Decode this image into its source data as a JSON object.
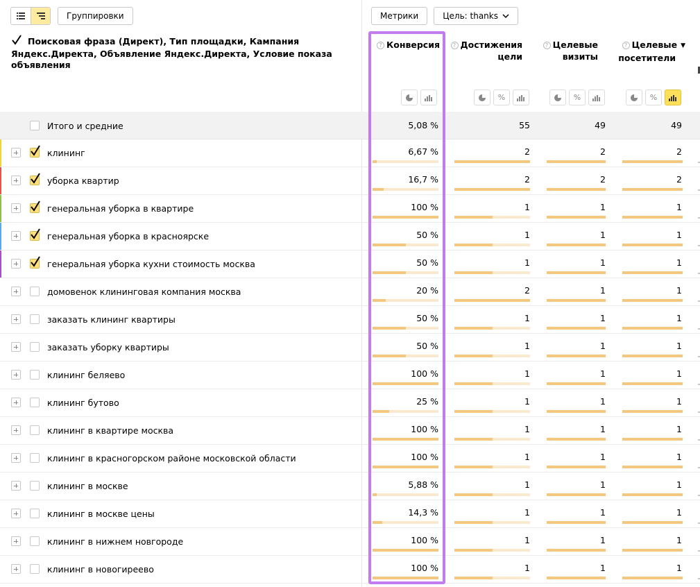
{
  "toolbar": {
    "groupings_label": "Группировки",
    "metrics_label": "Метрики",
    "goal_label": "Цель: thanks"
  },
  "dimension_header": "Поисковая фраза (Директ), Тип площадки, Кампания Яндекс.Директа, Объявление Яндекс.Директа, Условие показа объявления",
  "metric_headers": [
    {
      "line1": "Конверсия",
      "line2": ""
    },
    {
      "line1": "Достижения",
      "line2": "цели"
    },
    {
      "line1": "Целевые",
      "line2": "визиты"
    },
    {
      "line1": "Целевые",
      "line2": "посетители"
    }
  ],
  "icons_colors": {
    "accent": "#ffe05a",
    "highlight": "#c27cf0",
    "bar": "#f5c77e",
    "bar_bg": "#fbe9cf"
  },
  "totals": {
    "label": "Итого и средние",
    "conversion": "5,08 %",
    "goal_reaches": "55",
    "target_visits": "49",
    "target_visitors": "49"
  },
  "rows": [
    {
      "label": "клининг",
      "checked": true,
      "stripe": "#f3d23a",
      "conversion": "6,67 %",
      "conv_frac": 0.067,
      "goal_reaches": "2",
      "target_visits": "2",
      "target_visitors": "2"
    },
    {
      "label": "уборка квартир",
      "checked": true,
      "stripe": "#e5534b",
      "conversion": "16,7 %",
      "conv_frac": 0.167,
      "goal_reaches": "2",
      "target_visits": "2",
      "target_visitors": "2"
    },
    {
      "label": "генеральная уборка в квартире",
      "checked": true,
      "stripe": "#8ac34a",
      "conversion": "100 %",
      "conv_frac": 1.0,
      "goal_reaches": "1",
      "target_visits": "1",
      "target_visitors": "1"
    },
    {
      "label": "генеральная уборка в красноярске",
      "checked": true,
      "stripe": "#5aa9e6",
      "conversion": "50 %",
      "conv_frac": 0.5,
      "goal_reaches": "1",
      "target_visits": "1",
      "target_visitors": "1"
    },
    {
      "label": "генеральная уборка кухни стоимость москва",
      "checked": true,
      "stripe": "#a64fc9",
      "conversion": "50 %",
      "conv_frac": 0.5,
      "goal_reaches": "1",
      "target_visits": "1",
      "target_visitors": "1"
    },
    {
      "label": "домовенок клининговая компания москва",
      "checked": false,
      "stripe": "",
      "conversion": "20 %",
      "conv_frac": 0.2,
      "goal_reaches": "2",
      "target_visits": "1",
      "target_visitors": "1"
    },
    {
      "label": "заказать клининг квартиры",
      "checked": false,
      "stripe": "",
      "conversion": "50 %",
      "conv_frac": 0.5,
      "goal_reaches": "1",
      "target_visits": "1",
      "target_visitors": "1"
    },
    {
      "label": "заказать уборку квартиры",
      "checked": false,
      "stripe": "",
      "conversion": "50 %",
      "conv_frac": 0.5,
      "goal_reaches": "1",
      "target_visits": "1",
      "target_visitors": "1"
    },
    {
      "label": "клининг беляево",
      "checked": false,
      "stripe": "",
      "conversion": "100 %",
      "conv_frac": 1.0,
      "goal_reaches": "1",
      "target_visits": "1",
      "target_visitors": "1"
    },
    {
      "label": "клининг бутово",
      "checked": false,
      "stripe": "",
      "conversion": "25 %",
      "conv_frac": 0.25,
      "goal_reaches": "1",
      "target_visits": "1",
      "target_visitors": "1"
    },
    {
      "label": "клининг в квартире москва",
      "checked": false,
      "stripe": "",
      "conversion": "100 %",
      "conv_frac": 1.0,
      "goal_reaches": "1",
      "target_visits": "1",
      "target_visitors": "1"
    },
    {
      "label": "клининг в красногорском районе московской области",
      "checked": false,
      "stripe": "",
      "conversion": "100 %",
      "conv_frac": 1.0,
      "goal_reaches": "1",
      "target_visits": "1",
      "target_visitors": "1"
    },
    {
      "label": "клининг в москве",
      "checked": false,
      "stripe": "",
      "conversion": "5,88 %",
      "conv_frac": 0.0588,
      "goal_reaches": "1",
      "target_visits": "1",
      "target_visitors": "1"
    },
    {
      "label": "клининг в москве цены",
      "checked": false,
      "stripe": "",
      "conversion": "14,3 %",
      "conv_frac": 0.143,
      "goal_reaches": "1",
      "target_visits": "1",
      "target_visitors": "1"
    },
    {
      "label": "клининг в нижнем новгороде",
      "checked": false,
      "stripe": "",
      "conversion": "100 %",
      "conv_frac": 1.0,
      "goal_reaches": "1",
      "target_visits": "1",
      "target_visitors": "1"
    },
    {
      "label": "клининг в новогиреево",
      "checked": false,
      "stripe": "",
      "conversion": "100 %",
      "conv_frac": 1.0,
      "goal_reaches": "1",
      "target_visits": "1",
      "target_visitors": "1"
    }
  ]
}
